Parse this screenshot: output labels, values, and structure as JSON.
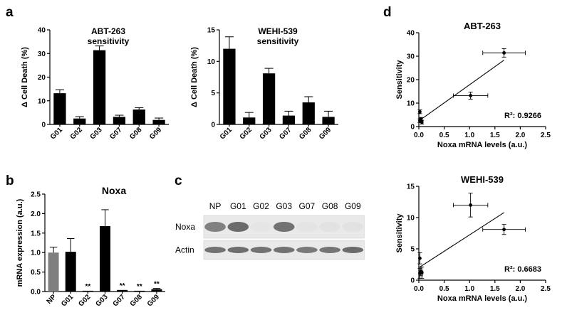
{
  "panel_labels": {
    "a": "a",
    "b": "b",
    "c": "c",
    "d": "d"
  },
  "chart_data": [
    {
      "id": "a1",
      "type": "bar",
      "title_line1": "ABT-263",
      "title_line2": "sensitivity",
      "ylabel": "Δ Cell Death (%)",
      "ylim": [
        0,
        40
      ],
      "yticks": [
        0,
        10,
        20,
        30,
        40
      ],
      "categories": [
        "G01",
        "G02",
        "G03",
        "G07",
        "G08",
        "G09"
      ],
      "values": [
        13.2,
        2.5,
        31.4,
        3.2,
        6.3,
        1.9
      ],
      "errors": [
        1.5,
        0.8,
        1.8,
        0.7,
        0.8,
        0.8
      ],
      "colors": [
        "#000000",
        "#000000",
        "#000000",
        "#000000",
        "#000000",
        "#000000"
      ]
    },
    {
      "id": "a2",
      "type": "bar",
      "title_line1": "WEHI-539",
      "title_line2": "sensitivity",
      "ylabel": "Δ Cell Death (%)",
      "ylim": [
        0,
        15
      ],
      "yticks": [
        0,
        5,
        10,
        15
      ],
      "categories": [
        "G01",
        "G02",
        "G03",
        "G07",
        "G08",
        "G09"
      ],
      "values": [
        12.0,
        1.1,
        8.1,
        1.4,
        3.5,
        1.2
      ],
      "errors": [
        1.9,
        0.8,
        0.8,
        0.7,
        0.9,
        0.9
      ],
      "colors": [
        "#000000",
        "#000000",
        "#000000",
        "#000000",
        "#000000",
        "#000000"
      ]
    },
    {
      "id": "b",
      "type": "bar",
      "title_line1": "Noxa",
      "title_line2": "",
      "ylabel": "mRNA expression (a.u.)",
      "ylim": [
        0,
        2.5
      ],
      "yticks": [
        0.0,
        0.5,
        1.0,
        1.5,
        2.0,
        2.5
      ],
      "ytick_labels": [
        "0.0",
        "0.5",
        "1.0",
        "1.5",
        "2.0",
        "2.5"
      ],
      "categories": [
        "NP",
        "G01",
        "G02",
        "G03",
        "G07",
        "G08",
        "G09"
      ],
      "values": [
        1.0,
        1.02,
        0.02,
        1.68,
        0.04,
        0.02,
        0.06
      ],
      "errors": [
        0.14,
        0.34,
        0.0,
        0.42,
        0.0,
        0.0,
        0.02
      ],
      "colors": [
        "#7f7f7f",
        "#000000",
        "#000000",
        "#000000",
        "#000000",
        "#000000",
        "#000000"
      ],
      "significance": [
        "",
        "",
        "**",
        "",
        "**",
        "**",
        "**"
      ]
    },
    {
      "id": "d1",
      "type": "scatter",
      "title": "ABT-263",
      "xlabel": "Noxa mRNA levels (a.u.)",
      "ylabel": "Sensitivity",
      "xlim": [
        0,
        2.5
      ],
      "ylim": [
        0,
        40
      ],
      "xticks": [
        0.0,
        0.5,
        1.0,
        1.5,
        2.0,
        2.5
      ],
      "xtick_labels": [
        "0.0",
        "0.5",
        "1.0",
        "1.5",
        "2.0",
        "2.5"
      ],
      "yticks": [
        0,
        10,
        20,
        30,
        40
      ],
      "points": [
        {
          "x": 1.68,
          "y": 31.4,
          "xerr": 0.42,
          "yerr": 1.8
        },
        {
          "x": 1.02,
          "y": 13.2,
          "xerr": 0.34,
          "yerr": 1.5
        },
        {
          "x": 0.02,
          "y": 2.5,
          "xerr": 0.0,
          "yerr": 0.8
        },
        {
          "x": 0.04,
          "y": 3.2,
          "xerr": 0.0,
          "yerr": 0.7
        },
        {
          "x": 0.02,
          "y": 6.3,
          "xerr": 0.0,
          "yerr": 0.8
        },
        {
          "x": 0.06,
          "y": 1.9,
          "xerr": 0.02,
          "yerr": 0.8
        }
      ],
      "fit": {
        "x0": 0.0,
        "y0": 2.4,
        "x1": 1.68,
        "y1": 28.3
      },
      "r2_label": "R²: 0.9266"
    },
    {
      "id": "d2",
      "type": "scatter",
      "title": "WEHI-539",
      "xlabel": "Noxa mRNA levels (a.u.)",
      "ylabel": "Sensitivity",
      "xlim": [
        0,
        2.5
      ],
      "ylim": [
        0,
        15
      ],
      "xticks": [
        0.0,
        0.5,
        1.0,
        1.5,
        2.0,
        2.5
      ],
      "xtick_labels": [
        "0.0",
        "0.5",
        "1.0",
        "1.5",
        "2.0",
        "2.5"
      ],
      "yticks": [
        0,
        5,
        10,
        15
      ],
      "points": [
        {
          "x": 1.02,
          "y": 12.0,
          "xerr": 0.34,
          "yerr": 1.9
        },
        {
          "x": 1.68,
          "y": 8.1,
          "xerr": 0.42,
          "yerr": 0.8
        },
        {
          "x": 0.02,
          "y": 1.1,
          "xerr": 0.0,
          "yerr": 0.8
        },
        {
          "x": 0.04,
          "y": 1.4,
          "xerr": 0.0,
          "yerr": 0.7
        },
        {
          "x": 0.02,
          "y": 3.5,
          "xerr": 0.0,
          "yerr": 0.9
        },
        {
          "x": 0.06,
          "y": 1.2,
          "xerr": 0.02,
          "yerr": 0.9
        }
      ],
      "fit": {
        "x0": 0.0,
        "y0": 2.0,
        "x1": 1.68,
        "y1": 10.8
      },
      "r2_label": "R²: 0.6683"
    }
  ],
  "blot": {
    "lanes": [
      "NP",
      "G01",
      "G02",
      "G03",
      "G07",
      "G08",
      "G09"
    ],
    "rows": [
      {
        "label": "Noxa",
        "intensities": [
          0.75,
          0.9,
          0.04,
          0.85,
          0.05,
          0.06,
          0.07
        ]
      },
      {
        "label": "Actin",
        "intensities": [
          0.85,
          0.88,
          0.85,
          0.85,
          0.8,
          0.83,
          0.9
        ]
      }
    ]
  }
}
